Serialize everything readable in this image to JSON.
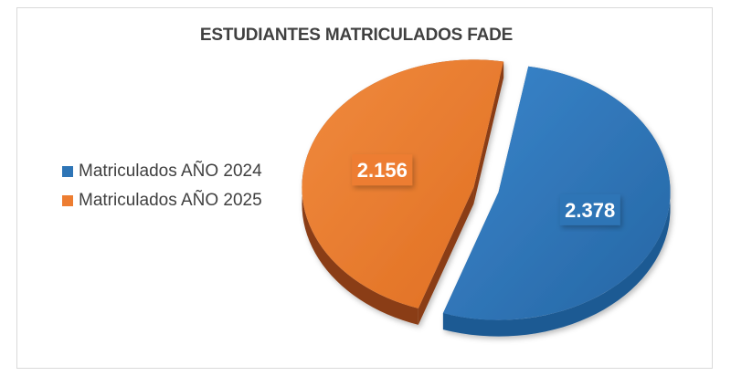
{
  "chart_data": {
    "type": "pie",
    "title": "ESTUDIANTES MATRICULADOS FADE",
    "categories": [
      "Matriculados AÑO 2024",
      "Matriculados AÑO 2025"
    ],
    "values": [
      2378,
      2156
    ],
    "data_labels": [
      "2.378",
      "2.156"
    ],
    "colors": [
      "#2E75B6",
      "#ED7D31"
    ],
    "dark_colors": [
      "#1F5A93",
      "#8A3D14"
    ],
    "legend_position": "left",
    "style": "3d-exploded"
  }
}
